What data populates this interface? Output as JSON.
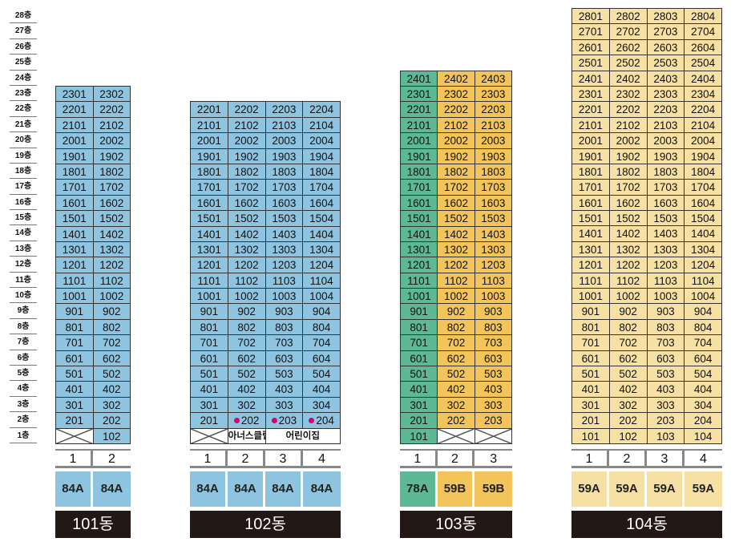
{
  "floors": [
    "28층",
    "27층",
    "26층",
    "25층",
    "24층",
    "23층",
    "22층",
    "21층",
    "20층",
    "19층",
    "18층",
    "17층",
    "16층",
    "15층",
    "14층",
    "13층",
    "12층",
    "11층",
    "10층",
    "9층",
    "8층",
    "7층",
    "6층",
    "5층",
    "4층",
    "3층",
    "2층",
    "1층"
  ],
  "colors": {
    "blue": "#8ec4e0",
    "green": "#5db896",
    "yellow": "#f2c45a",
    "cream": "#f6e0a4",
    "name_bg": "#231815"
  },
  "buildings": [
    {
      "name": "101동",
      "top_floor": 23,
      "lines": [
        "1",
        "2"
      ],
      "types": [
        "84A",
        "84A"
      ],
      "line_colors": [
        "blue",
        "blue"
      ],
      "first_floor": [
        {
          "kind": "empty"
        },
        {
          "kind": "unit",
          "label": "102"
        }
      ],
      "second_floor_marks": [
        false,
        false
      ]
    },
    {
      "name": "102동",
      "top_floor": 22,
      "lines": [
        "1",
        "2",
        "3",
        "4"
      ],
      "types": [
        "84A",
        "84A",
        "84A",
        "84A"
      ],
      "line_colors": [
        "blue",
        "blue",
        "blue",
        "blue"
      ],
      "first_floor": [
        {
          "kind": "empty"
        },
        {
          "kind": "facility",
          "label": "아너스클럽"
        },
        {
          "kind": "facility",
          "label": "어린이집",
          "span": 2
        }
      ],
      "second_floor_marks": [
        false,
        true,
        true,
        true
      ]
    },
    {
      "name": "103동",
      "top_floor": 24,
      "lines": [
        "1",
        "2",
        "3"
      ],
      "types": [
        "78A",
        "59B",
        "59B"
      ],
      "line_colors": [
        "green",
        "yellow",
        "yellow"
      ],
      "first_floor": [
        {
          "kind": "unit",
          "label": "101"
        },
        {
          "kind": "empty"
        },
        {
          "kind": "empty"
        }
      ],
      "second_floor_marks": [
        false,
        false,
        false
      ]
    },
    {
      "name": "104동",
      "top_floor": 28,
      "lines": [
        "1",
        "2",
        "3",
        "4"
      ],
      "types": [
        "59A",
        "59A",
        "59A",
        "59A"
      ],
      "line_colors": [
        "cream",
        "cream",
        "cream",
        "cream"
      ],
      "first_floor": [
        {
          "kind": "unit",
          "label": "101"
        },
        {
          "kind": "unit",
          "label": "102"
        },
        {
          "kind": "unit",
          "label": "103"
        },
        {
          "kind": "unit",
          "label": "104"
        }
      ],
      "second_floor_marks": [
        false,
        false,
        false,
        false
      ]
    }
  ]
}
